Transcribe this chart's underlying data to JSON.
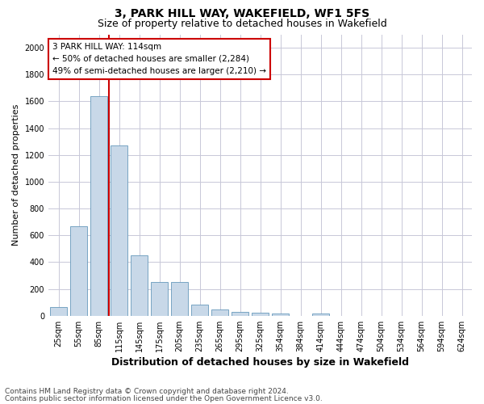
{
  "title": "3, PARK HILL WAY, WAKEFIELD, WF1 5FS",
  "subtitle": "Size of property relative to detached houses in Wakefield",
  "xlabel": "Distribution of detached houses by size in Wakefield",
  "ylabel": "Number of detached properties",
  "bar_labels": [
    "25sqm",
    "55sqm",
    "85sqm",
    "115sqm",
    "145sqm",
    "175sqm",
    "205sqm",
    "235sqm",
    "265sqm",
    "295sqm",
    "325sqm",
    "354sqm",
    "384sqm",
    "414sqm",
    "444sqm",
    "474sqm",
    "504sqm",
    "534sqm",
    "564sqm",
    "594sqm",
    "624sqm"
  ],
  "bar_values": [
    65,
    670,
    1640,
    1270,
    450,
    250,
    250,
    85,
    45,
    30,
    25,
    15,
    0,
    15,
    0,
    0,
    0,
    0,
    0,
    0,
    0
  ],
  "bar_color": "#c8d8e8",
  "bar_edge_color": "#6699bb",
  "annotation_text": "3 PARK HILL WAY: 114sqm\n← 50% of detached houses are smaller (2,284)\n49% of semi-detached houses are larger (2,210) →",
  "annotation_box_color": "#ffffff",
  "annotation_box_edge_color": "#cc0000",
  "vline_color": "#cc0000",
  "ylim": [
    0,
    2100
  ],
  "yticks": [
    0,
    200,
    400,
    600,
    800,
    1000,
    1200,
    1400,
    1600,
    1800,
    2000
  ],
  "footer1": "Contains HM Land Registry data © Crown copyright and database right 2024.",
  "footer2": "Contains public sector information licensed under the Open Government Licence v3.0.",
  "bg_color": "#ffffff",
  "grid_color": "#c8c8d8",
  "title_fontsize": 10,
  "subtitle_fontsize": 9,
  "xlabel_fontsize": 9,
  "ylabel_fontsize": 8,
  "tick_fontsize": 7,
  "annotation_fontsize": 7.5,
  "footer_fontsize": 6.5
}
